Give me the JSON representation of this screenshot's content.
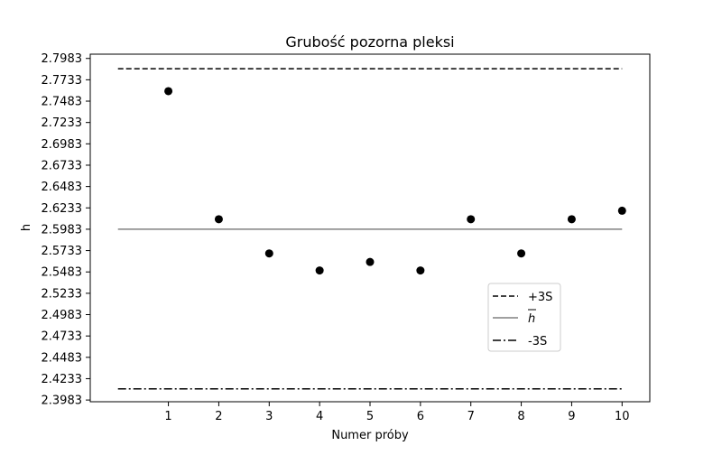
{
  "chart_data": {
    "type": "scatter",
    "title": "Grubość pozorna pleksi",
    "xlabel": "Numer próby",
    "ylabel": "h",
    "xlim": [
      -0.55,
      10.55
    ],
    "ylim": [
      2.3963,
      2.8033
    ],
    "x_ticks": [
      1,
      2,
      3,
      4,
      5,
      6,
      7,
      8,
      9,
      10
    ],
    "y_ticks": [
      2.3983,
      2.4233,
      2.4483,
      2.4733,
      2.4983,
      2.5233,
      2.5483,
      2.5733,
      2.5983,
      2.6233,
      2.6483,
      2.6733,
      2.6983,
      2.7233,
      2.7483,
      2.7733,
      2.7983
    ],
    "grid": false,
    "legend_position": "lower-right",
    "points": {
      "x": [
        1,
        2,
        3,
        4,
        5,
        6,
        7,
        8,
        9,
        10
      ],
      "y": [
        2.76,
        2.61,
        2.57,
        2.55,
        2.56,
        2.55,
        2.61,
        2.57,
        2.61,
        2.62
      ]
    },
    "lines": [
      {
        "name": "+3S",
        "y": 2.7863,
        "x_range": [
          0,
          10
        ],
        "style": "dashed",
        "color": "#000000"
      },
      {
        "name": "h̄",
        "y": 2.5983,
        "x_range": [
          0,
          10
        ],
        "style": "solid",
        "color": "#808080"
      },
      {
        "name": "-3S",
        "y": 2.4113,
        "x_range": [
          0,
          10
        ],
        "style": "dashdot",
        "color": "#000000"
      }
    ],
    "legend": [
      "+3S",
      "h",
      "-3S"
    ]
  }
}
